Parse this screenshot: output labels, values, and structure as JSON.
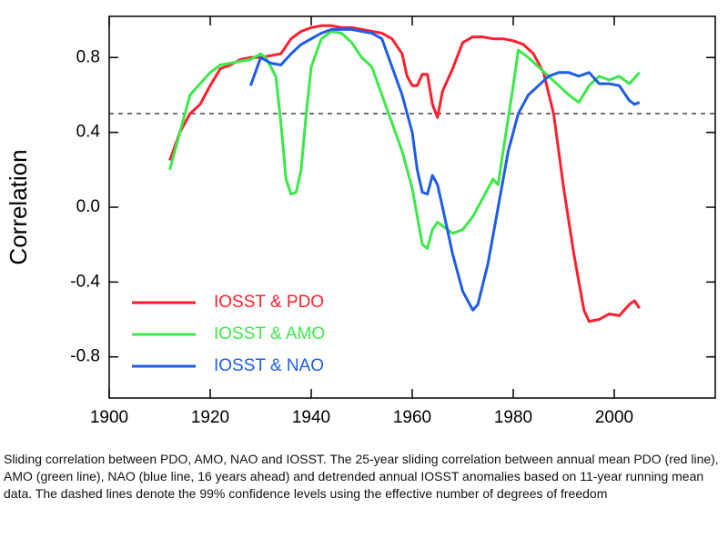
{
  "chart_data": {
    "type": "line",
    "ylabel": "Correlation",
    "xlim": [
      1900,
      2020
    ],
    "ylim": [
      -1.02,
      1.02
    ],
    "xticks": [
      1900,
      1920,
      1940,
      1960,
      1980,
      2000
    ],
    "yticks": [
      -0.8,
      -0.4,
      {
        "value": 0,
        "label": "0.0"
      },
      0.4,
      0.8
    ],
    "reference_line": 0.5,
    "series": [
      {
        "name": "IOSST & PDO",
        "color": "#ff1f2e",
        "x": [
          1912,
          1914,
          1916,
          1918,
          1920,
          1922,
          1924,
          1926,
          1928,
          1930,
          1932,
          1934,
          1936,
          1938,
          1940,
          1942,
          1944,
          1946,
          1948,
          1950,
          1952,
          1954,
          1956,
          1958,
          1959,
          1960,
          1961,
          1962,
          1963,
          1964,
          1965,
          1966,
          1968,
          1970,
          1972,
          1974,
          1976,
          1978,
          1980,
          1982,
          1984,
          1986,
          1988,
          1990,
          1992,
          1994,
          1995,
          1997,
          1999,
          2001,
          2003,
          2004,
          2005
        ],
        "values": [
          0.25,
          0.4,
          0.5,
          0.55,
          0.65,
          0.74,
          0.76,
          0.79,
          0.8,
          0.8,
          0.81,
          0.82,
          0.9,
          0.94,
          0.96,
          0.97,
          0.97,
          0.96,
          0.96,
          0.95,
          0.94,
          0.93,
          0.9,
          0.82,
          0.7,
          0.65,
          0.65,
          0.71,
          0.71,
          0.55,
          0.48,
          0.62,
          0.74,
          0.88,
          0.91,
          0.91,
          0.9,
          0.9,
          0.89,
          0.87,
          0.82,
          0.72,
          0.5,
          0.1,
          -0.25,
          -0.55,
          -0.61,
          -0.6,
          -0.57,
          -0.58,
          -0.52,
          -0.5,
          -0.54
        ]
      },
      {
        "name": "IOSST & AMO",
        "color": "#3be84a",
        "x": [
          1912,
          1914,
          1916,
          1918,
          1920,
          1922,
          1924,
          1926,
          1928,
          1930,
          1931,
          1933,
          1934,
          1935,
          1936,
          1937,
          1938,
          1939,
          1940,
          1942,
          1944,
          1946,
          1948,
          1950,
          1952,
          1954,
          1956,
          1958,
          1960,
          1962,
          1963,
          1964,
          1965,
          1966,
          1968,
          1970,
          1972,
          1974,
          1976,
          1977,
          1978,
          1980,
          1981,
          1983,
          1985,
          1987,
          1989,
          1991,
          1993,
          1995,
          1997,
          1999,
          2001,
          2003,
          2005
        ],
        "values": [
          0.2,
          0.4,
          0.6,
          0.66,
          0.72,
          0.76,
          0.77,
          0.78,
          0.79,
          0.82,
          0.8,
          0.7,
          0.45,
          0.15,
          0.07,
          0.08,
          0.2,
          0.5,
          0.75,
          0.9,
          0.94,
          0.93,
          0.88,
          0.8,
          0.75,
          0.6,
          0.45,
          0.3,
          0.1,
          -0.2,
          -0.22,
          -0.12,
          -0.08,
          -0.1,
          -0.14,
          -0.12,
          -0.05,
          0.05,
          0.15,
          0.12,
          0.3,
          0.65,
          0.84,
          0.8,
          0.75,
          0.7,
          0.65,
          0.6,
          0.56,
          0.65,
          0.7,
          0.68,
          0.7,
          0.66,
          0.72
        ]
      },
      {
        "name": "IOSST & NAO",
        "color": "#1f5ce6",
        "x": [
          1928,
          1930,
          1932,
          1934,
          1936,
          1938,
          1940,
          1942,
          1944,
          1946,
          1948,
          1950,
          1952,
          1954,
          1956,
          1958,
          1960,
          1961,
          1962,
          1963,
          1964,
          1965,
          1966,
          1968,
          1970,
          1972,
          1973,
          1975,
          1977,
          1979,
          1981,
          1983,
          1985,
          1987,
          1989,
          1991,
          1993,
          1995,
          1997,
          1999,
          2001,
          2003,
          2004,
          2005
        ],
        "values": [
          0.65,
          0.8,
          0.77,
          0.76,
          0.82,
          0.87,
          0.9,
          0.93,
          0.95,
          0.95,
          0.95,
          0.94,
          0.93,
          0.9,
          0.75,
          0.6,
          0.4,
          0.2,
          0.08,
          0.07,
          0.17,
          0.12,
          0.0,
          -0.25,
          -0.45,
          -0.55,
          -0.52,
          -0.3,
          0.0,
          0.3,
          0.5,
          0.6,
          0.65,
          0.7,
          0.72,
          0.72,
          0.7,
          0.72,
          0.66,
          0.66,
          0.65,
          0.57,
          0.55,
          0.56
        ]
      }
    ]
  },
  "caption": "Sliding correlation between PDO, AMO, NAO and IOSST. The 25-year sliding correlation between annual mean PDO (red line), AMO (green line), NAO (blue line, 16 years ahead) and detrended annual IOSST anomalies based on 11-year running mean data. The dashed lines denote the 99% confidence levels using the effective number of degrees of freedom"
}
